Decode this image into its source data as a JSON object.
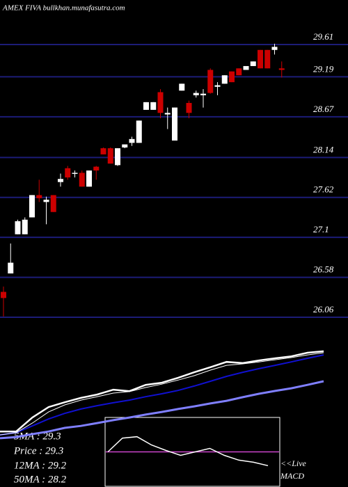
{
  "chart_data": [
    {
      "type": "candlestick",
      "title": "AMEX  FIVA bullkhan.munafasutra.com",
      "open": [
        26.39,
        26.63,
        27.14,
        27.14,
        27.36,
        27.65,
        27.56,
        27.65,
        27.82,
        28.0,
        27.93,
        27.94,
        27.76,
        28.02,
        28.26,
        28.26,
        28.04,
        28.27,
        28.33,
        28.33,
        28.76,
        28.76,
        28.99,
        28.7,
        28.36,
        29.01,
        28.85,
        28.95,
        28.95,
        29.28,
        29.06,
        29.1,
        29.26,
        29.3,
        29.28,
        29.33,
        29.54,
        29.54,
        29.54,
        29.3
      ],
      "high": [
        26.46,
        27.02,
        27.33,
        27.36,
        27.65,
        27.85,
        27.63,
        27.65,
        27.93,
        28.03,
        27.97,
        27.97,
        27.97,
        28.03,
        28.27,
        28.27,
        28.26,
        28.31,
        28.41,
        28.62,
        28.86,
        28.86,
        29.03,
        28.79,
        28.79,
        29.1,
        28.88,
        29.01,
        29.03,
        29.3,
        29.12,
        29.21,
        29.26,
        29.3,
        29.33,
        29.39,
        29.54,
        29.54,
        29.62,
        29.39
      ],
      "low": [
        26.07,
        26.63,
        27.14,
        27.14,
        27.36,
        27.56,
        27.27,
        27.43,
        27.76,
        27.85,
        27.88,
        27.76,
        27.76,
        27.85,
        28.18,
        28.06,
        28.03,
        28.26,
        28.29,
        28.33,
        28.76,
        28.76,
        28.65,
        28.51,
        28.36,
        29.01,
        28.65,
        28.92,
        28.79,
        28.97,
        28.95,
        29.1,
        29.12,
        29.21,
        29.28,
        29.33,
        29.3,
        29.3,
        29.48,
        29.18
      ],
      "close": [
        26.31,
        26.77,
        27.31,
        27.33,
        27.65,
        27.61,
        27.59,
        27.43,
        27.86,
        27.88,
        27.94,
        27.76,
        27.97,
        27.97,
        28.18,
        28.06,
        28.26,
        28.31,
        28.38,
        28.62,
        28.86,
        28.86,
        28.72,
        28.72,
        28.79,
        29.1,
        28.72,
        28.98,
        28.97,
        28.98,
        29.08,
        29.21,
        29.12,
        29.21,
        29.33,
        29.39,
        29.3,
        29.3,
        29.58,
        29.28
      ],
      "up_color": "#ffffff",
      "down_color": "#cc0000",
      "grid_color": "#1c1c78",
      "ylim": [
        25.933,
        30.19
      ],
      "yticks": [
        29.61,
        29.19,
        28.67,
        28.14,
        27.62,
        27.1,
        26.58,
        26.06
      ]
    },
    {
      "type": "line",
      "ylim": [
        25.57,
        29.89
      ],
      "series": [
        {
          "color": "#7f7fff",
          "width": 3,
          "values": [
            25.86,
            25.91,
            26.03,
            26.14,
            26.29,
            26.37,
            26.49,
            26.61,
            26.72,
            26.84,
            26.95,
            27.07,
            27.18,
            27.3,
            27.41,
            27.56,
            27.7,
            27.82,
            27.93,
            28.07,
            28.22
          ]
        },
        {
          "color": "#1010d0",
          "width": 2,
          "values": [
            26.0,
            26.09,
            26.37,
            26.66,
            26.89,
            27.07,
            27.21,
            27.33,
            27.44,
            27.58,
            27.7,
            27.84,
            28.02,
            28.22,
            28.42,
            28.59,
            28.74,
            28.88,
            29.02,
            29.17,
            29.31
          ]
        },
        {
          "color": "#ffffff",
          "width": 1,
          "values": [
            26.0,
            26.09,
            26.49,
            26.95,
            27.24,
            27.44,
            27.58,
            27.73,
            27.79,
            27.96,
            28.1,
            28.27,
            28.45,
            28.68,
            28.88,
            28.94,
            29.02,
            29.11,
            29.2,
            29.31,
            29.4
          ]
        },
        {
          "color": "#ffffff",
          "width": 2.5,
          "values": [
            26.14,
            26.14,
            26.72,
            27.15,
            27.35,
            27.53,
            27.67,
            27.87,
            27.81,
            28.07,
            28.16,
            28.36,
            28.59,
            28.8,
            29.02,
            28.97,
            29.08,
            29.17,
            29.25,
            29.4,
            29.46
          ]
        }
      ]
    },
    {
      "type": "macd",
      "ylim": [
        -5,
        5
      ],
      "reference": 0,
      "reference_color": "#cc44cc",
      "color": "#ffffff",
      "values": [
        0,
        2,
        2.2,
        1,
        0.2,
        -0.5,
        0,
        0.5,
        -0.5,
        -1.2,
        -1.5,
        -2
      ]
    }
  ],
  "labels": [
    "5MA : 29.3",
    "Price : 29.3",
    "12MA : 29.2",
    "50MA : 28.2"
  ],
  "live": [
    "<<Live",
    "MACD"
  ]
}
